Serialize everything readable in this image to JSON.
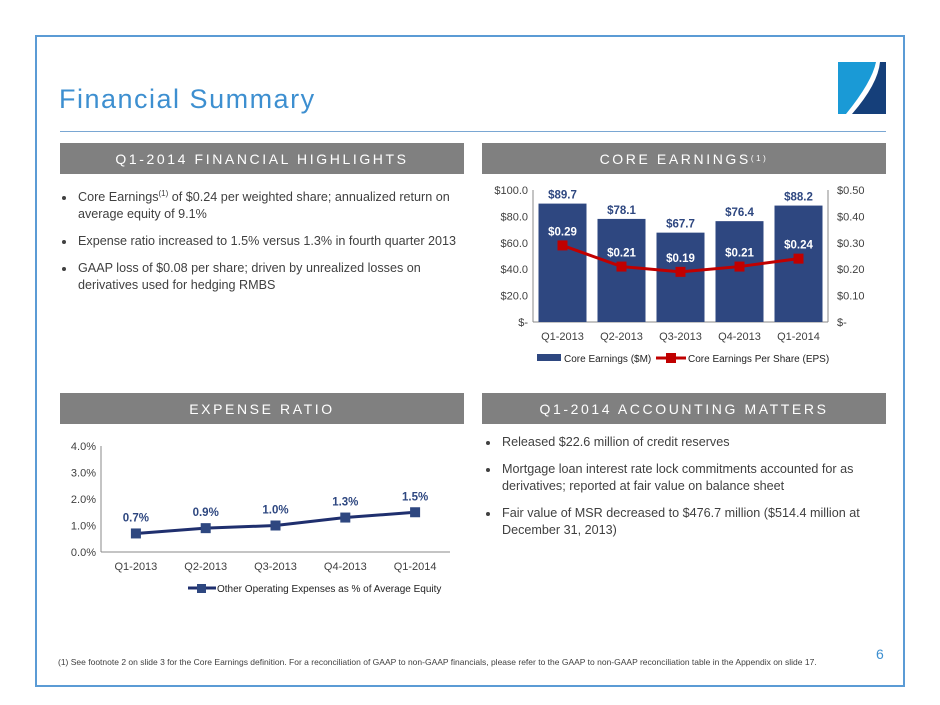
{
  "title": "Financial Summary",
  "headers": {
    "highlights": "Q1-2014 FINANCIAL HIGHLIGHTS",
    "core": "CORE EARNINGS",
    "core_sup": "(1)",
    "expense": "EXPENSE RATIO",
    "accounting": "Q1-2014 ACCOUNTING MATTERS"
  },
  "highlights": [
    {
      "pre": "Core Earnings",
      "sup": "(1)",
      "text": " of $0.24 per weighted share; annualized return on average equity of 9.1%"
    },
    {
      "pre": "",
      "sup": "",
      "text": "Expense ratio increased to 1.5% versus 1.3% in fourth quarter 2013"
    },
    {
      "pre": "",
      "sup": "",
      "text": "GAAP loss of $0.08 per share; driven by unrealized losses on derivatives used for hedging RMBS"
    }
  ],
  "accounting": [
    "Released $22.6 million of credit reserves",
    "Mortgage loan interest rate lock commitments accounted for as derivatives; reported at fair value on balance sheet",
    "Fair value of MSR decreased to $476.7 million ($514.4 million at December 31, 2013)"
  ],
  "footnote": "(1)    See footnote 2 on slide 3 for the Core Earnings definition. For a reconciliation of GAAP to non-GAAP financials, please refer to the GAAP to non-GAAP reconciliation table in the Appendix on slide 17.",
  "page_number": "6",
  "colors": {
    "bar": "#2e4780",
    "line_red": "#c00000",
    "navy": "#1f2f6e",
    "header_bg": "#808080",
    "accent": "#3d8fd0"
  },
  "chart_data": [
    {
      "type": "bar+line",
      "categories": [
        "Q1-2013",
        "Q2-2013",
        "Q3-2013",
        "Q4-2013",
        "Q1-2014"
      ],
      "series": [
        {
          "name": "Core Earnings ($M)",
          "type": "bar",
          "axis": "left",
          "values": [
            89.7,
            78.1,
            67.7,
            76.4,
            88.2
          ],
          "labels": [
            "$89.7",
            "$78.1",
            "$67.7",
            "$76.4",
            "$88.2"
          ]
        },
        {
          "name": "Core Earnings Per Share (EPS)",
          "type": "line",
          "axis": "right",
          "values": [
            0.29,
            0.21,
            0.19,
            0.21,
            0.24
          ],
          "labels": [
            "$0.29",
            "$0.21",
            "$0.19",
            "$0.21",
            "$0.24"
          ]
        }
      ],
      "ylim": [
        0,
        100
      ],
      "y2lim": [
        0,
        0.5
      ],
      "yticks": [
        "$-",
        "$20.0",
        "$40.0",
        "$60.0",
        "$80.0",
        "$100.0"
      ],
      "y2ticks": [
        "$-",
        "$0.10",
        "$0.20",
        "$0.30",
        "$0.40",
        "$0.50"
      ],
      "legend": "bottom",
      "grid": false
    },
    {
      "type": "line",
      "categories": [
        "Q1-2013",
        "Q2-2013",
        "Q3-2013",
        "Q4-2013",
        "Q1-2014"
      ],
      "series": [
        {
          "name": "Other Operating Expenses as % of Average Equity",
          "values": [
            0.7,
            0.9,
            1.0,
            1.3,
            1.5
          ],
          "labels": [
            "0.7%",
            "0.9%",
            "1.0%",
            "1.3%",
            "1.5%"
          ]
        }
      ],
      "ylim": [
        0,
        4
      ],
      "yticks": [
        "0.0%",
        "1.0%",
        "2.0%",
        "3.0%",
        "4.0%"
      ],
      "legend": "bottom",
      "grid": false
    }
  ]
}
